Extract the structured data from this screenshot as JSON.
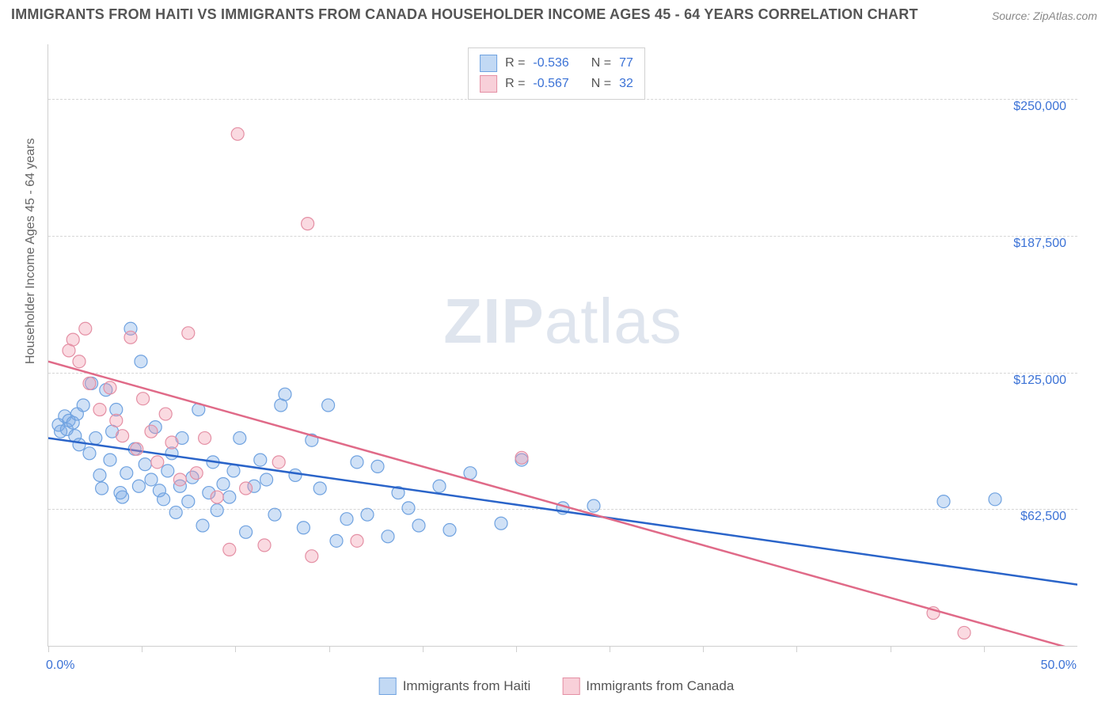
{
  "title": "IMMIGRANTS FROM HAITI VS IMMIGRANTS FROM CANADA HOUSEHOLDER INCOME AGES 45 - 64 YEARS CORRELATION CHART",
  "source": "Source: ZipAtlas.com",
  "y_axis_label": "Householder Income Ages 45 - 64 years",
  "watermark_bold": "ZIP",
  "watermark_light": "atlas",
  "chart": {
    "type": "scatter",
    "xlim": [
      0,
      50
    ],
    "ylim": [
      0,
      275000
    ],
    "x_tick_label_left": "0.0%",
    "x_tick_label_right": "50.0%",
    "y_ticks": [
      62500,
      125000,
      187500,
      250000
    ],
    "y_tick_labels": [
      "$62,500",
      "$125,000",
      "$187,500",
      "$250,000"
    ],
    "grid_color": "#d6d6d6",
    "background_color": "#ffffff",
    "plot_border_color": "#cfcfcf",
    "point_radius": 8,
    "point_stroke_width": 1.2,
    "line_width": 2.5,
    "series": [
      {
        "name": "Immigrants from Haiti",
        "fill": "rgba(120,170,230,0.35)",
        "stroke": "#6fa2e0",
        "line_color": "#2a64c9",
        "R": "-0.536",
        "N": "77",
        "regression": {
          "x1": 0,
          "y1": 95000,
          "x2": 50,
          "y2": 28000
        },
        "points": [
          [
            0.5,
            101000
          ],
          [
            0.6,
            98000
          ],
          [
            0.8,
            105000
          ],
          [
            0.9,
            99000
          ],
          [
            1.0,
            103000
          ],
          [
            1.2,
            102000
          ],
          [
            1.3,
            96000
          ],
          [
            1.4,
            106000
          ],
          [
            1.5,
            92000
          ],
          [
            1.7,
            110000
          ],
          [
            2.0,
            88000
          ],
          [
            2.1,
            120000
          ],
          [
            2.3,
            95000
          ],
          [
            2.5,
            78000
          ],
          [
            2.6,
            72000
          ],
          [
            2.8,
            117000
          ],
          [
            3.0,
            85000
          ],
          [
            3.1,
            98000
          ],
          [
            3.3,
            108000
          ],
          [
            3.5,
            70000
          ],
          [
            3.6,
            68000
          ],
          [
            3.8,
            79000
          ],
          [
            4.0,
            145000
          ],
          [
            4.2,
            90000
          ],
          [
            4.4,
            73000
          ],
          [
            4.5,
            130000
          ],
          [
            4.7,
            83000
          ],
          [
            5.0,
            76000
          ],
          [
            5.2,
            100000
          ],
          [
            5.4,
            71000
          ],
          [
            5.6,
            67000
          ],
          [
            5.8,
            80000
          ],
          [
            6.0,
            88000
          ],
          [
            6.2,
            61000
          ],
          [
            6.4,
            73000
          ],
          [
            6.5,
            95000
          ],
          [
            6.8,
            66000
          ],
          [
            7.0,
            77000
          ],
          [
            7.3,
            108000
          ],
          [
            7.5,
            55000
          ],
          [
            7.8,
            70000
          ],
          [
            8.0,
            84000
          ],
          [
            8.2,
            62000
          ],
          [
            8.5,
            74000
          ],
          [
            8.8,
            68000
          ],
          [
            9.0,
            80000
          ],
          [
            9.3,
            95000
          ],
          [
            9.6,
            52000
          ],
          [
            10.0,
            73000
          ],
          [
            10.3,
            85000
          ],
          [
            10.6,
            76000
          ],
          [
            11.0,
            60000
          ],
          [
            11.3,
            110000
          ],
          [
            11.5,
            115000
          ],
          [
            12.0,
            78000
          ],
          [
            12.4,
            54000
          ],
          [
            12.8,
            94000
          ],
          [
            13.2,
            72000
          ],
          [
            13.6,
            110000
          ],
          [
            14.0,
            48000
          ],
          [
            14.5,
            58000
          ],
          [
            15.0,
            84000
          ],
          [
            15.5,
            60000
          ],
          [
            16.0,
            82000
          ],
          [
            16.5,
            50000
          ],
          [
            17.0,
            70000
          ],
          [
            17.5,
            63000
          ],
          [
            18.0,
            55000
          ],
          [
            19.0,
            73000
          ],
          [
            19.5,
            53000
          ],
          [
            20.5,
            79000
          ],
          [
            22.0,
            56000
          ],
          [
            23.0,
            85000
          ],
          [
            25.0,
            63000
          ],
          [
            26.5,
            64000
          ],
          [
            43.5,
            66000
          ],
          [
            46.0,
            67000
          ]
        ]
      },
      {
        "name": "Immigrants from Canada",
        "fill": "rgba(240,150,170,0.35)",
        "stroke": "#e48fa4",
        "line_color": "#e06a88",
        "R": "-0.567",
        "N": "32",
        "regression": {
          "x1": 0,
          "y1": 130000,
          "x2": 50,
          "y2": -2000
        },
        "points": [
          [
            1.0,
            135000
          ],
          [
            1.2,
            140000
          ],
          [
            1.5,
            130000
          ],
          [
            1.8,
            145000
          ],
          [
            2.0,
            120000
          ],
          [
            2.5,
            108000
          ],
          [
            3.0,
            118000
          ],
          [
            3.3,
            103000
          ],
          [
            3.6,
            96000
          ],
          [
            4.0,
            141000
          ],
          [
            4.3,
            90000
          ],
          [
            4.6,
            113000
          ],
          [
            5.0,
            98000
          ],
          [
            5.3,
            84000
          ],
          [
            5.7,
            106000
          ],
          [
            6.0,
            93000
          ],
          [
            6.4,
            76000
          ],
          [
            6.8,
            143000
          ],
          [
            7.2,
            79000
          ],
          [
            7.6,
            95000
          ],
          [
            8.2,
            68000
          ],
          [
            8.8,
            44000
          ],
          [
            9.2,
            234000
          ],
          [
            9.6,
            72000
          ],
          [
            10.5,
            46000
          ],
          [
            11.2,
            84000
          ],
          [
            12.6,
            193000
          ],
          [
            12.8,
            41000
          ],
          [
            15.0,
            48000
          ],
          [
            23.0,
            86000
          ],
          [
            43.0,
            15000
          ],
          [
            44.5,
            6000
          ]
        ]
      }
    ]
  },
  "legend_bottom": [
    {
      "swatch": "blue",
      "label": "Immigrants from Haiti"
    },
    {
      "swatch": "pink",
      "label": "Immigrants from Canada"
    }
  ]
}
